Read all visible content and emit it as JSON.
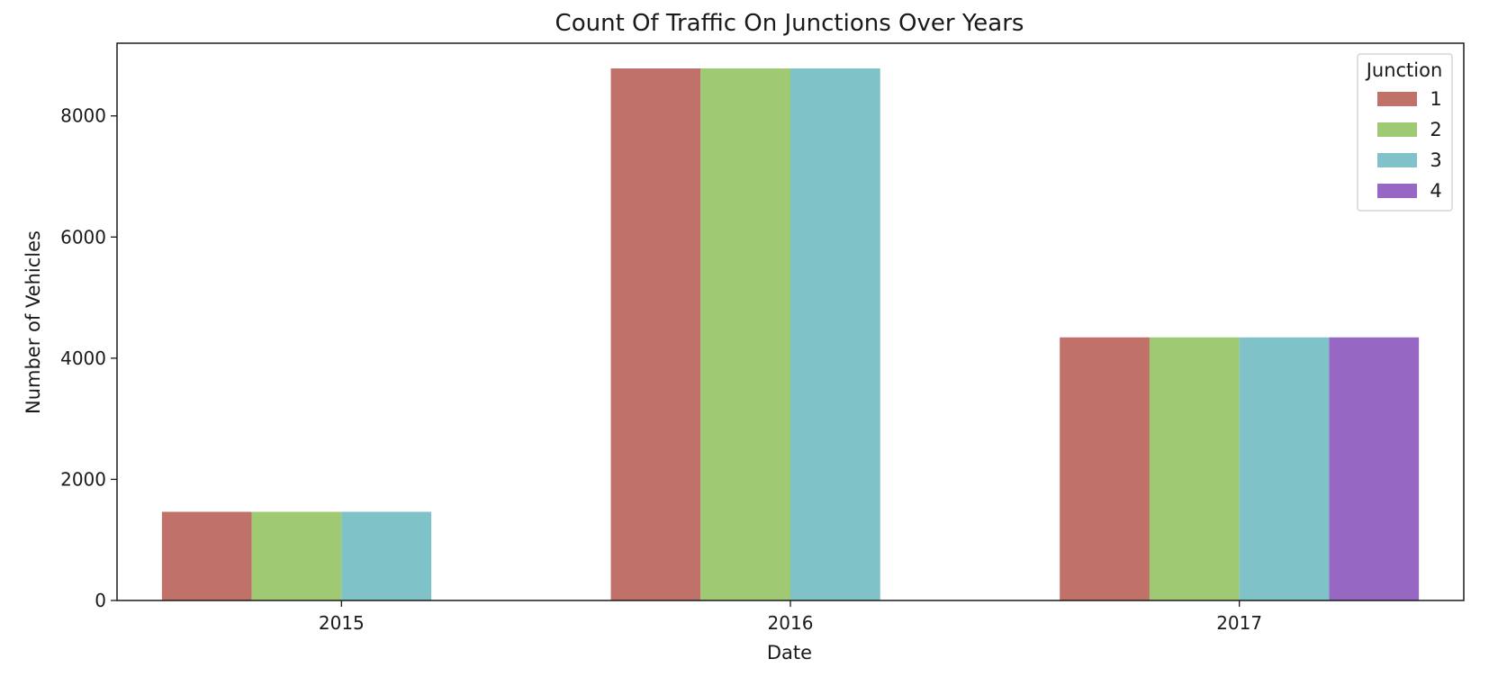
{
  "chart_data": {
    "type": "bar",
    "title": "Count Of Traffic On Junctions Over Years",
    "xlabel": "Date",
    "ylabel": "Number of Vehicles",
    "categories": [
      "2015",
      "2016",
      "2017"
    ],
    "ylim": [
      0,
      9200
    ],
    "yticks": [
      0,
      2000,
      4000,
      6000,
      8000
    ],
    "grid": false,
    "legend": {
      "title": "Junction",
      "placement": "top-right"
    },
    "series": [
      {
        "name": "1",
        "color": "#c0716a",
        "values": [
          1464,
          8784,
          4344
        ]
      },
      {
        "name": "2",
        "color": "#a0c973",
        "values": [
          1464,
          8784,
          4344
        ]
      },
      {
        "name": "3",
        "color": "#7fc2c8",
        "values": [
          1464,
          8784,
          4344
        ]
      },
      {
        "name": "4",
        "color": "#9768c3",
        "values": [
          0,
          0,
          4344
        ]
      }
    ]
  }
}
